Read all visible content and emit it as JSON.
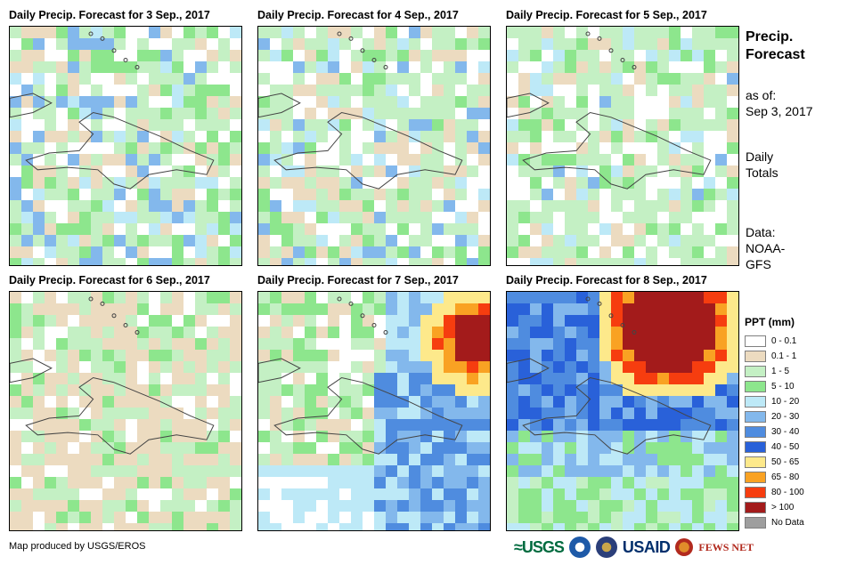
{
  "panels": [
    {
      "title": "Daily Precip. Forecast for 3 Sep., 2017",
      "pattern": "light"
    },
    {
      "title": "Daily Precip. Forecast for 4 Sep., 2017",
      "pattern": "light2"
    },
    {
      "title": "Daily Precip. Forecast for 5 Sep., 2017",
      "pattern": "light3"
    },
    {
      "title": "Daily Precip. Forecast for 6 Sep., 2017",
      "pattern": "dry"
    },
    {
      "title": "Daily Precip. Forecast for 7 Sep., 2017",
      "pattern": "storm_ne"
    },
    {
      "title": "Daily Precip. Forecast for 8 Sep., 2017",
      "pattern": "storm_n"
    }
  ],
  "side": {
    "title_line1": "Precip.",
    "title_line2": "Forecast",
    "asof_label": "as of:",
    "asof_date": "Sep 3, 2017",
    "daily_line1": "Daily",
    "daily_line2": "Totals",
    "data_label": "Data:",
    "data_line1": "NOAA-",
    "data_line2": "GFS"
  },
  "legend": {
    "title": "PPT (mm)",
    "items": [
      {
        "label": "0 - 0.1",
        "color": "#ffffff"
      },
      {
        "label": "0.1 - 1",
        "color": "#ecdbc0"
      },
      {
        "label": "1 - 5",
        "color": "#c4f0c4"
      },
      {
        "label": "5 - 10",
        "color": "#8de68d"
      },
      {
        "label": "10 - 20",
        "color": "#bde9f7"
      },
      {
        "label": "20 - 30",
        "color": "#83b8ec"
      },
      {
        "label": "30 - 40",
        "color": "#4f8cdf"
      },
      {
        "label": "40 - 50",
        "color": "#2961d9"
      },
      {
        "label": "50 - 65",
        "color": "#fde98b"
      },
      {
        "label": "65 - 80",
        "color": "#f9a223"
      },
      {
        "label": "80 - 100",
        "color": "#f63d0f"
      },
      {
        "label": "> 100",
        "color": "#a31b1b"
      },
      {
        "label": "No Data",
        "color": "#9e9e9e"
      }
    ]
  },
  "credit": "Map produced by USGS/EROS",
  "logos": {
    "usgs": "≈USGS",
    "usaid": "USAID",
    "fews": "FEWS NET"
  }
}
